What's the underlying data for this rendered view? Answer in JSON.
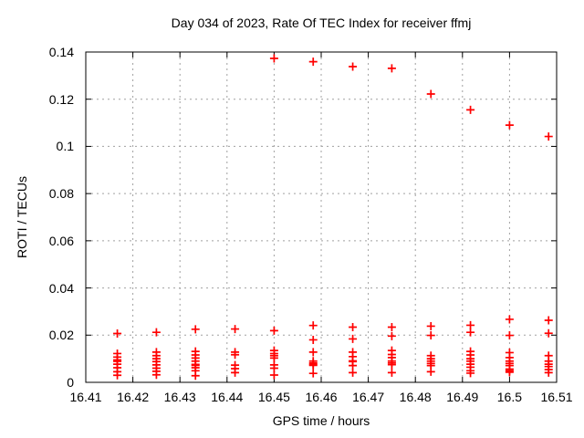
{
  "page": {
    "background_color": "#ffffff",
    "text_color": "#000000"
  },
  "chart_data": {
    "type": "scatter",
    "title": "Day 034 of 2023, Rate Of TEC Index for receiver ffmj",
    "xlabel": "GPS time / hours",
    "ylabel": "ROTI / TECUs",
    "xlim": [
      16.41,
      16.51
    ],
    "ylim": [
      0,
      0.14
    ],
    "xtick_values": [
      16.41,
      16.42,
      16.43,
      16.44,
      16.45,
      16.46,
      16.47,
      16.48,
      16.49,
      16.5,
      16.51
    ],
    "xtick_labels": [
      "16.41",
      "16.42",
      "16.43",
      "16.44",
      "16.45",
      "16.46",
      "16.47",
      "16.48",
      "16.49",
      "16.5",
      "16.51"
    ],
    "ytick_values": [
      0,
      0.02,
      0.04,
      0.06,
      0.08,
      0.1,
      0.12,
      0.14
    ],
    "ytick_labels": [
      "0",
      "0.02",
      "0.04",
      "0.06",
      "0.08",
      "0.1",
      "0.12",
      "0.14"
    ],
    "grid": "dashed",
    "grid_color": "#a0a0a0",
    "border_color": "#000000",
    "legend": "none",
    "marker": {
      "shape": "plus",
      "color": "#ff0000",
      "size": 9,
      "stroke_width": 1.7
    },
    "series": [
      {
        "name": "ROTI",
        "points": [
          [
            16.4167,
            0.0207
          ],
          [
            16.4167,
            0.0122
          ],
          [
            16.4167,
            0.0107
          ],
          [
            16.4167,
            0.0095
          ],
          [
            16.4167,
            0.0089
          ],
          [
            16.4167,
            0.0077
          ],
          [
            16.4167,
            0.0062
          ],
          [
            16.4167,
            0.0045
          ],
          [
            16.4167,
            0.003
          ],
          [
            16.425,
            0.0212
          ],
          [
            16.425,
            0.0128
          ],
          [
            16.425,
            0.0113
          ],
          [
            16.425,
            0.01
          ],
          [
            16.425,
            0.0088
          ],
          [
            16.425,
            0.0074
          ],
          [
            16.425,
            0.006
          ],
          [
            16.425,
            0.0047
          ],
          [
            16.425,
            0.0032
          ],
          [
            16.4333,
            0.0225
          ],
          [
            16.4333,
            0.0131
          ],
          [
            16.4333,
            0.0116
          ],
          [
            16.4333,
            0.0103
          ],
          [
            16.4333,
            0.009
          ],
          [
            16.4333,
            0.0076
          ],
          [
            16.4333,
            0.0072
          ],
          [
            16.4333,
            0.0062
          ],
          [
            16.4333,
            0.0049
          ],
          [
            16.4333,
            0.0028
          ],
          [
            16.4417,
            0.0226
          ],
          [
            16.4417,
            0.0128
          ],
          [
            16.4417,
            0.0117
          ],
          [
            16.4417,
            0.0073
          ],
          [
            16.4417,
            0.0058
          ],
          [
            16.4417,
            0.0041
          ],
          [
            16.45,
            0.1373
          ],
          [
            16.45,
            0.0219
          ],
          [
            16.45,
            0.0135
          ],
          [
            16.45,
            0.0122
          ],
          [
            16.45,
            0.0113
          ],
          [
            16.45,
            0.0103
          ],
          [
            16.45,
            0.0074
          ],
          [
            16.45,
            0.006
          ],
          [
            16.45,
            0.0031
          ],
          [
            16.4583,
            0.1359
          ],
          [
            16.4583,
            0.0241
          ],
          [
            16.4583,
            0.018
          ],
          [
            16.4583,
            0.0128
          ],
          [
            16.4583,
            0.009
          ],
          [
            16.4583,
            0.0082
          ],
          [
            16.4583,
            0.0076
          ],
          [
            16.4583,
            0.0072
          ],
          [
            16.4583,
            0.0038
          ],
          [
            16.4667,
            0.1338
          ],
          [
            16.4667,
            0.0234
          ],
          [
            16.4667,
            0.0184
          ],
          [
            16.4667,
            0.0128
          ],
          [
            16.4667,
            0.0109
          ],
          [
            16.4667,
            0.0091
          ],
          [
            16.4667,
            0.0088
          ],
          [
            16.4667,
            0.0071
          ],
          [
            16.4667,
            0.0041
          ],
          [
            16.475,
            0.1331
          ],
          [
            16.475,
            0.0234
          ],
          [
            16.475,
            0.0196
          ],
          [
            16.475,
            0.0135
          ],
          [
            16.475,
            0.0118
          ],
          [
            16.475,
            0.0105
          ],
          [
            16.475,
            0.009
          ],
          [
            16.475,
            0.0082
          ],
          [
            16.475,
            0.0075
          ],
          [
            16.475,
            0.0041
          ],
          [
            16.4833,
            0.1222
          ],
          [
            16.4833,
            0.0238
          ],
          [
            16.4833,
            0.0199
          ],
          [
            16.4833,
            0.0113
          ],
          [
            16.4833,
            0.01
          ],
          [
            16.4833,
            0.009
          ],
          [
            16.4833,
            0.008
          ],
          [
            16.4833,
            0.0071
          ],
          [
            16.4833,
            0.0045
          ],
          [
            16.4917,
            0.1155
          ],
          [
            16.4917,
            0.0242
          ],
          [
            16.4917,
            0.0212
          ],
          [
            16.4917,
            0.0131
          ],
          [
            16.4917,
            0.0116
          ],
          [
            16.4917,
            0.01
          ],
          [
            16.4917,
            0.009
          ],
          [
            16.4917,
            0.0077
          ],
          [
            16.4917,
            0.0064
          ],
          [
            16.4917,
            0.0049
          ],
          [
            16.4917,
            0.0039
          ],
          [
            16.5,
            0.109
          ],
          [
            16.5,
            0.0267
          ],
          [
            16.5,
            0.0199
          ],
          [
            16.5,
            0.0126
          ],
          [
            16.5,
            0.0105
          ],
          [
            16.5,
            0.009
          ],
          [
            16.5,
            0.008
          ],
          [
            16.5,
            0.0071
          ],
          [
            16.5,
            0.0056
          ],
          [
            16.5,
            0.0049
          ],
          [
            16.5,
            0.0043
          ],
          [
            16.5083,
            0.1042
          ],
          [
            16.5083,
            0.0263
          ],
          [
            16.5083,
            0.0208
          ],
          [
            16.5083,
            0.0113
          ],
          [
            16.5083,
            0.009
          ],
          [
            16.5083,
            0.0077
          ],
          [
            16.5083,
            0.0067
          ],
          [
            16.5083,
            0.0054
          ],
          [
            16.5083,
            0.0041
          ]
        ]
      }
    ]
  }
}
